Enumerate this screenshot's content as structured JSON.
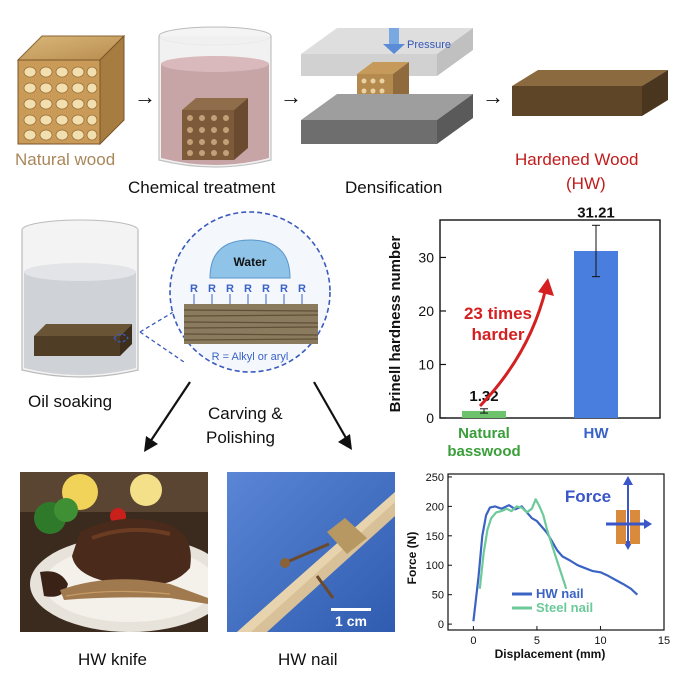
{
  "process": {
    "natural_wood_label": "Natural wood",
    "chemical_label": "Chemical treatment",
    "densification_label": "Densification",
    "pressure_label": "Pressure",
    "hardened_line1": "Hardened Wood",
    "hardened_line2": "(HW)"
  },
  "coating": {
    "oil_soaking_label": "Oil soaking",
    "water_label": "Water",
    "r_glyph": "R",
    "r_legend": "R = Alkyl or aryl",
    "carving_line1": "Carving &",
    "carving_line2": "Polishing"
  },
  "hardness_chart": {
    "ylabel": "Brinell hardness number",
    "categories": [
      "Natural\nbasswood",
      "HW"
    ],
    "cat_line1": [
      "Natural",
      "HW"
    ],
    "cat_line2": [
      "basswood",
      ""
    ],
    "values": [
      1.32,
      31.21
    ],
    "value_labels": [
      "1.32",
      "31.21"
    ],
    "errors": [
      0.4,
      4.8
    ],
    "ylim": [
      0,
      37
    ],
    "yticks": [
      "0",
      "10",
      "20",
      "30"
    ],
    "annotation_line1": "23 times",
    "annotation_line2": "harder",
    "colors": {
      "natural": "#6cc36c",
      "hw": "#4a7ede",
      "annotation": "#d42020",
      "cat_natural": "#3a9e3a",
      "cat_hw": "#3a63c8"
    }
  },
  "chart_data": {
    "type": "line",
    "xlabel": "Displacement (mm)",
    "ylabel": "Force (N)",
    "xlim": [
      -2,
      15
    ],
    "ylim": [
      -10,
      255
    ],
    "xticks": [
      "0",
      "5",
      "10",
      "15"
    ],
    "yticks": [
      "0",
      "50",
      "100",
      "150",
      "200",
      "250"
    ],
    "force_label": "Force",
    "series": [
      {
        "name": "HW nail",
        "color": "#3b63c4",
        "x": [
          0,
          0.4,
          0.7,
          1.0,
          1.3,
          1.7,
          2.2,
          2.8,
          3.3,
          3.8,
          4.2,
          4.6,
          5.0,
          5.4,
          5.8,
          6.2,
          6.6,
          7.0,
          7.6,
          8.2,
          8.8,
          9.4,
          10.0,
          10.6,
          11.2,
          11.8,
          12.4,
          12.9
        ],
        "y": [
          5,
          80,
          150,
          185,
          198,
          200,
          196,
          202,
          195,
          200,
          190,
          180,
          175,
          165,
          155,
          140,
          125,
          115,
          108,
          100,
          95,
          90,
          88,
          82,
          75,
          68,
          60,
          50
        ]
      },
      {
        "name": "Steel nail",
        "color": "#6cc99a",
        "x": [
          0.5,
          0.8,
          1.1,
          1.4,
          1.8,
          2.2,
          2.6,
          3.0,
          3.4,
          3.8,
          4.2,
          4.6,
          4.9,
          5.2,
          5.5,
          5.8,
          6.1,
          6.4,
          6.7,
          7.0,
          7.3
        ],
        "y": [
          60,
          120,
          160,
          180,
          190,
          192,
          196,
          192,
          200,
          198,
          190,
          196,
          212,
          200,
          185,
          160,
          140,
          120,
          100,
          80,
          60
        ]
      }
    ]
  },
  "bottom": {
    "knife_label": "HW knife",
    "nail_label": "HW nail",
    "scale_label": "1 cm"
  }
}
